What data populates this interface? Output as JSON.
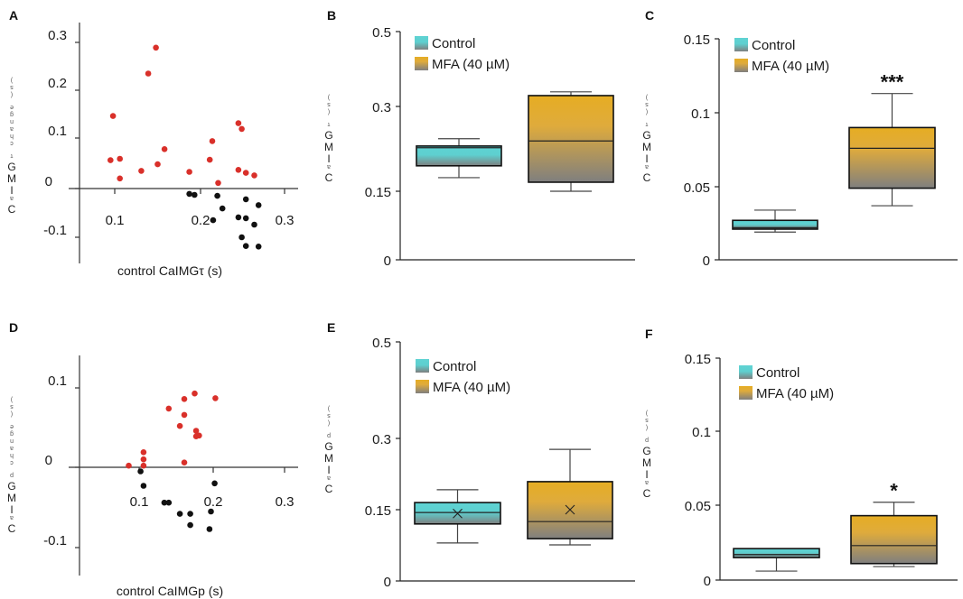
{
  "figure": {
    "panels": [
      "A",
      "B",
      "C",
      "D",
      "E",
      "F"
    ],
    "legend": {
      "control_label": "Control",
      "mfa_label": "MFA (40 µM)"
    },
    "colors": {
      "increase_points": "#d9302a",
      "decrease_points": "#111111",
      "control_top": "#5fd3d3",
      "mfa_top": "#e6ad23",
      "box_bottom": "#7f7f7f"
    }
  },
  "chart_data": [
    {
      "panel": "A",
      "type": "scatter",
      "xlabel": "control CaIMGτ (s)",
      "ylabel": "CaIMGτ change (s)",
      "xticks": [
        "0.1",
        "0.2",
        "0.3"
      ],
      "yticks": [
        "-0.1",
        "0",
        "0.1",
        "0.2",
        "0.3"
      ],
      "xlim": [
        0.03,
        0.31
      ],
      "ylim": [
        -0.15,
        0.33
      ],
      "series": [
        {
          "name": "increase",
          "color": "#d9302a",
          "points": [
            [
              0.095,
              0.056
            ],
            [
              0.098,
              0.146
            ],
            [
              0.106,
              0.059
            ],
            [
              0.106,
              0.02
            ],
            [
              0.131,
              0.035
            ],
            [
              0.139,
              0.235
            ],
            [
              0.148,
              0.289
            ],
            [
              0.15,
              0.048
            ],
            [
              0.158,
              0.078
            ],
            [
              0.187,
              0.033
            ],
            [
              0.211,
              0.057
            ],
            [
              0.214,
              0.094
            ],
            [
              0.221,
              0.011
            ],
            [
              0.245,
              0.131
            ],
            [
              0.249,
              0.119
            ],
            [
              0.245,
              0.037
            ],
            [
              0.254,
              0.031
            ],
            [
              0.264,
              0.026
            ]
          ]
        },
        {
          "name": "decrease",
          "color": "#111111",
          "points": [
            [
              0.187,
              -0.011
            ],
            [
              0.193,
              -0.013
            ],
            [
              0.22,
              -0.015
            ],
            [
              0.226,
              -0.041
            ],
            [
              0.215,
              -0.065
            ],
            [
              0.245,
              -0.059
            ],
            [
              0.254,
              -0.022
            ],
            [
              0.254,
              -0.061
            ],
            [
              0.264,
              -0.074
            ],
            [
              0.269,
              -0.034
            ],
            [
              0.249,
              -0.1
            ],
            [
              0.254,
              -0.118
            ],
            [
              0.269,
              -0.119
            ]
          ]
        }
      ]
    },
    {
      "panel": "B",
      "type": "box",
      "ylabel": "CaIMGτ (s)",
      "yticks": [
        "0",
        "0.15",
        "0.3",
        "0.5"
      ],
      "ylim": [
        0,
        0.5
      ],
      "legend": [
        "Control",
        "MFA (40 µM)"
      ],
      "boxes": [
        {
          "name": "Control",
          "whisker_low": 0.174,
          "q1": 0.195,
          "median": 0.227,
          "q3": 0.23,
          "whisker_high": 0.243
        },
        {
          "name": "MFA (40 µM)",
          "whisker_low": 0.15,
          "q1": 0.166,
          "median": 0.239,
          "q3": 0.329,
          "whisker_high": 0.339
        }
      ],
      "significance": ""
    },
    {
      "panel": "C",
      "type": "box",
      "ylabel": "CaIMGτ (s)",
      "yticks": [
        "0",
        "0.05",
        "0.1",
        "0.15"
      ],
      "ylim": [
        0,
        0.15
      ],
      "legend": [
        "Control",
        "MFA (40 µM)"
      ],
      "boxes": [
        {
          "name": "Control",
          "whisker_low": 0.019,
          "q1": 0.021,
          "median": 0.022,
          "q3": 0.027,
          "whisker_high": 0.034
        },
        {
          "name": "MFA (40 µM)",
          "whisker_low": 0.037,
          "q1": 0.049,
          "median": 0.076,
          "q3": 0.09,
          "whisker_high": 0.113
        }
      ],
      "significance": "***"
    },
    {
      "panel": "D",
      "type": "scatter",
      "xlabel": "control CaIMGp (s)",
      "ylabel": "CaIMGp change (s)",
      "xticks": [
        "0.1",
        "0.2",
        "0.3"
      ],
      "yticks": [
        "-0.1",
        "0",
        "0.1"
      ],
      "xlim": [
        0.03,
        0.31
      ],
      "ylim": [
        -0.135,
        0.14
      ],
      "series": [
        {
          "name": "increase",
          "color": "#d9302a",
          "points": [
            [
              0.086,
              0.002
            ],
            [
              0.106,
              0.019
            ],
            [
              0.106,
              0.01
            ],
            [
              0.106,
              0.002
            ],
            [
              0.14,
              0.074
            ],
            [
              0.155,
              0.052
            ],
            [
              0.161,
              0.086
            ],
            [
              0.161,
              0.066
            ],
            [
              0.161,
              0.006
            ],
            [
              0.175,
              0.093
            ],
            [
              0.177,
              0.046
            ],
            [
              0.177,
              0.039
            ],
            [
              0.181,
              0.04
            ],
            [
              0.203,
              0.087
            ]
          ]
        },
        {
          "name": "decrease",
          "color": "#111111",
          "points": [
            [
              0.102,
              -0.005
            ],
            [
              0.106,
              -0.023
            ],
            [
              0.134,
              -0.044
            ],
            [
              0.14,
              -0.044
            ],
            [
              0.155,
              -0.058
            ],
            [
              0.169,
              -0.058
            ],
            [
              0.169,
              -0.072
            ],
            [
              0.197,
              -0.055
            ],
            [
              0.195,
              -0.077
            ],
            [
              0.202,
              -0.02
            ]
          ]
        }
      ]
    },
    {
      "panel": "E",
      "type": "box",
      "ylabel": "CaIMGp (s)",
      "yticks": [
        "0",
        "0.15",
        "0.3",
        "0.5"
      ],
      "ylim": [
        0,
        0.5
      ],
      "legend": [
        "Control",
        "MFA (40 µM)"
      ],
      "boxes": [
        {
          "name": "Control",
          "whisker_low": 0.08,
          "q1": 0.12,
          "median": 0.144,
          "q3": 0.165,
          "whisker_high": 0.192,
          "mean": 0.142
        },
        {
          "name": "MFA (40 µM)",
          "whisker_low": 0.076,
          "q1": 0.089,
          "median": 0.125,
          "q3": 0.209,
          "whisker_high": 0.277,
          "mean": 0.15
        }
      ],
      "significance": ""
    },
    {
      "panel": "F",
      "type": "box",
      "ylabel": "CaIMGp (s)",
      "yticks": [
        "0",
        "0.05",
        "0.1",
        "0.15"
      ],
      "ylim": [
        0,
        0.15
      ],
      "legend": [
        "Control",
        "MFA (40 µM)"
      ],
      "boxes": [
        {
          "name": "Control",
          "whisker_low": 0.006,
          "q1": 0.015,
          "median": 0.017,
          "q3": 0.021,
          "whisker_high": 0.021
        },
        {
          "name": "MFA (40 µM)",
          "whisker_low": 0.009,
          "q1": 0.011,
          "median": 0.023,
          "q3": 0.043,
          "whisker_high": 0.052
        }
      ],
      "significance": "*"
    }
  ]
}
